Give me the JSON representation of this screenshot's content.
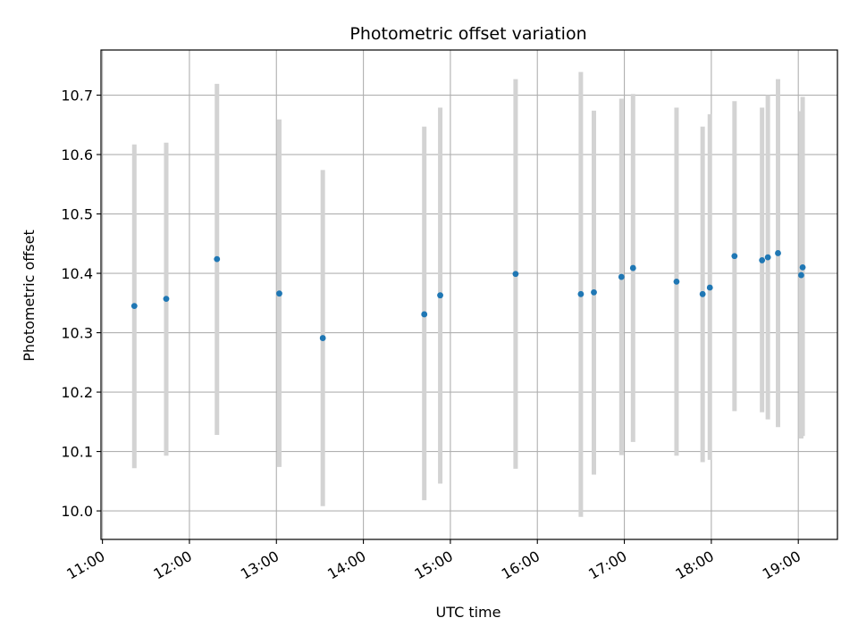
{
  "chart_data": {
    "type": "scatter",
    "title": "Photometric offset variation",
    "xlabel": "UTC time",
    "ylabel": "Photometric offset",
    "x_ticks": [
      "11:00",
      "12:00",
      "13:00",
      "14:00",
      "15:00",
      "16:00",
      "17:00",
      "18:00",
      "19:00"
    ],
    "y_ticks": [
      "10.0",
      "10.1",
      "10.2",
      "10.3",
      "10.4",
      "10.5",
      "10.6",
      "10.7"
    ],
    "xlim": [
      "10:59",
      "19:27"
    ],
    "ylim": [
      9.952,
      10.776
    ],
    "grid": true,
    "colors": {
      "points": "#1f77b4",
      "errorbars": "#d3d3d3",
      "grid": "#b0b0b0"
    },
    "series": [
      {
        "points": [
          {
            "x": "11:22",
            "y": 10.345,
            "y_low": 10.072,
            "y_high": 10.617
          },
          {
            "x": "11:44",
            "y": 10.357,
            "y_low": 10.093,
            "y_high": 10.62
          },
          {
            "x": "12:19",
            "y": 10.424,
            "y_low": 10.128,
            "y_high": 10.719
          },
          {
            "x": "13:02",
            "y": 10.366,
            "y_low": 10.074,
            "y_high": 10.659
          },
          {
            "x": "13:32",
            "y": 10.291,
            "y_low": 10.008,
            "y_high": 10.574
          },
          {
            "x": "14:42",
            "y": 10.331,
            "y_low": 10.018,
            "y_high": 10.647
          },
          {
            "x": "14:53",
            "y": 10.363,
            "y_low": 10.046,
            "y_high": 10.679
          },
          {
            "x": "15:45",
            "y": 10.399,
            "y_low": 10.071,
            "y_high": 10.727
          },
          {
            "x": "16:30",
            "y": 10.365,
            "y_low": 9.99,
            "y_high": 10.739
          },
          {
            "x": "16:39",
            "y": 10.368,
            "y_low": 10.061,
            "y_high": 10.674
          },
          {
            "x": "16:58",
            "y": 10.394,
            "y_low": 10.094,
            "y_high": 10.694
          },
          {
            "x": "17:06",
            "y": 10.409,
            "y_low": 10.116,
            "y_high": 10.702
          },
          {
            "x": "17:36",
            "y": 10.386,
            "y_low": 10.093,
            "y_high": 10.679
          },
          {
            "x": "17:54",
            "y": 10.365,
            "y_low": 10.082,
            "y_high": 10.647
          },
          {
            "x": "17:59",
            "y": 10.376,
            "y_low": 10.086,
            "y_high": 10.668
          },
          {
            "x": "18:16",
            "y": 10.429,
            "y_low": 10.168,
            "y_high": 10.69
          },
          {
            "x": "18:35",
            "y": 10.422,
            "y_low": 10.166,
            "y_high": 10.679
          },
          {
            "x": "18:39",
            "y": 10.427,
            "y_low": 10.154,
            "y_high": 10.7
          },
          {
            "x": "18:46",
            "y": 10.434,
            "y_low": 10.141,
            "y_high": 10.727
          },
          {
            "x": "19:02",
            "y": 10.397,
            "y_low": 10.122,
            "y_high": 10.673
          },
          {
            "x": "19:03",
            "y": 10.41,
            "y_low": 10.126,
            "y_high": 10.697
          }
        ]
      }
    ]
  }
}
